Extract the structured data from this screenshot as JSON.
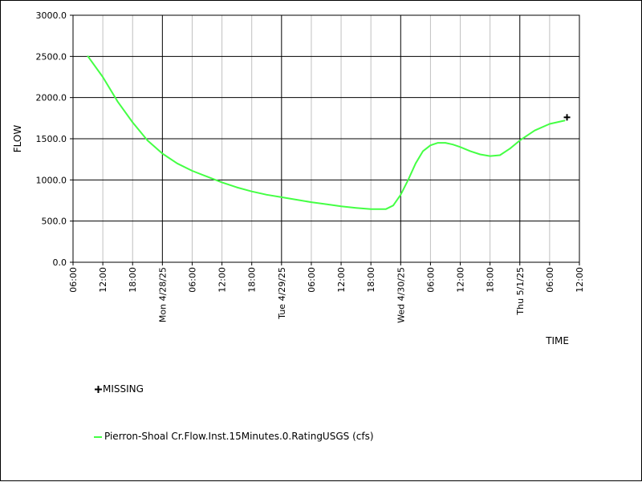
{
  "chart_data": {
    "type": "line",
    "ylabel": "FLOW",
    "xlabel": "TIME",
    "ylim": [
      0,
      3000
    ],
    "y_ticks": [
      "0.0",
      "500.0",
      "1000.0",
      "1500.0",
      "2000.0",
      "2500.0",
      "3000.0"
    ],
    "x_range_hours": [
      0,
      102
    ],
    "x_ticks": [
      {
        "label": "06:00",
        "major": false
      },
      {
        "label": "12:00",
        "major": false
      },
      {
        "label": "18:00",
        "major": false
      },
      {
        "label": "Mon 4/28/25",
        "major": true
      },
      {
        "label": "06:00",
        "major": false
      },
      {
        "label": "12:00",
        "major": false
      },
      {
        "label": "18:00",
        "major": false
      },
      {
        "label": "Tue 4/29/25",
        "major": true
      },
      {
        "label": "06:00",
        "major": false
      },
      {
        "label": "12:00",
        "major": false
      },
      {
        "label": "18:00",
        "major": false
      },
      {
        "label": "Wed 4/30/25",
        "major": true
      },
      {
        "label": "06:00",
        "major": false
      },
      {
        "label": "12:00",
        "major": false
      },
      {
        "label": "18:00",
        "major": false
      },
      {
        "label": "Thu 5/1/25",
        "major": true
      },
      {
        "label": "06:00",
        "major": false
      },
      {
        "label": "12:00",
        "major": false
      }
    ],
    "series": [
      {
        "name": "Pierron-Shoal Cr.Flow.Inst.15Minutes.0.RatingUSGS (cfs)",
        "color": "#44ff44",
        "x": [
          3,
          6,
          9,
          12,
          15,
          18,
          21,
          24,
          27,
          30,
          33,
          36,
          39,
          42,
          45,
          48,
          51,
          54,
          57,
          60,
          63,
          64.5,
          66,
          67.5,
          69,
          70.5,
          72,
          73.5,
          75,
          76.5,
          78,
          80,
          82,
          84,
          86,
          88,
          90,
          93,
          96,
          99
        ],
        "y": [
          2500,
          2250,
          1950,
          1700,
          1480,
          1320,
          1200,
          1110,
          1040,
          970,
          910,
          860,
          820,
          790,
          760,
          730,
          705,
          680,
          660,
          645,
          645,
          690,
          820,
          1000,
          1200,
          1350,
          1420,
          1450,
          1450,
          1430,
          1400,
          1350,
          1310,
          1290,
          1300,
          1380,
          1480,
          1600,
          1680,
          1720
        ]
      }
    ],
    "missing_points": [
      {
        "x": 99.5,
        "y": 1760
      }
    ],
    "legend": {
      "missing_label": "MISSING",
      "series_label": "Pierron-Shoal Cr.Flow.Inst.15Minutes.0.RatingUSGS (cfs)"
    },
    "grid": true
  }
}
